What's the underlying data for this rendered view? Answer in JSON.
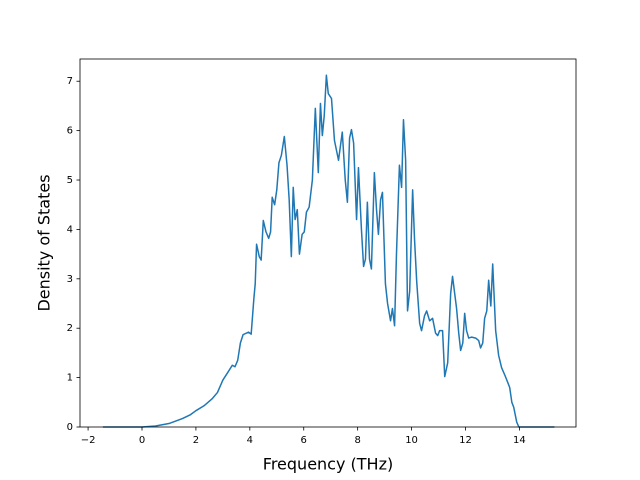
{
  "chart_data": {
    "type": "line",
    "x_label": "Frequency (THz)",
    "y_label": "Density of States",
    "xlim": [
      -2.3,
      16.1
    ],
    "ylim": [
      0,
      7.45
    ],
    "xticks": [
      {
        "value": -2,
        "label": "−2"
      },
      0,
      2,
      4,
      6,
      8,
      10,
      12,
      14
    ],
    "yticks": [
      0,
      1,
      2,
      3,
      4,
      5,
      6,
      7
    ],
    "grid": false,
    "series": [
      {
        "color": "#1f77b4",
        "x": [
          -1.45,
          0,
          0.5,
          1.0,
          1.5,
          1.8,
          2.0,
          2.3,
          2.6,
          2.8,
          3.0,
          3.2,
          3.35,
          3.45,
          3.55,
          3.65,
          3.75,
          3.95,
          4.05,
          4.15,
          4.2,
          4.25,
          4.35,
          4.42,
          4.5,
          4.6,
          4.7,
          4.77,
          4.83,
          4.92,
          5.0,
          5.08,
          5.17,
          5.28,
          5.38,
          5.46,
          5.54,
          5.61,
          5.68,
          5.76,
          5.84,
          5.94,
          6.02,
          6.1,
          6.2,
          6.32,
          6.43,
          6.54,
          6.62,
          6.69,
          6.76,
          6.84,
          6.91,
          7.03,
          7.14,
          7.29,
          7.43,
          7.54,
          7.62,
          7.7,
          7.77,
          7.85,
          7.96,
          8.03,
          8.14,
          8.22,
          8.29,
          8.36,
          8.44,
          8.51,
          8.62,
          8.7,
          8.77,
          8.85,
          8.92,
          9.03,
          9.11,
          9.22,
          9.29,
          9.37,
          9.44,
          9.55,
          9.63,
          9.7,
          9.78,
          9.85,
          9.93,
          10.04,
          10.11,
          10.19,
          10.3,
          10.37,
          10.48,
          10.56,
          10.67,
          10.78,
          10.89,
          10.97,
          11.04,
          11.15,
          11.23,
          11.34,
          11.45,
          11.52,
          11.6,
          11.67,
          11.75,
          11.82,
          11.9,
          11.97,
          12.04,
          12.12,
          12.23,
          12.38,
          12.49,
          12.56,
          12.64,
          12.71,
          12.79,
          12.86,
          12.94,
          13.01,
          13.12,
          13.23,
          13.34,
          13.46,
          13.57,
          13.64,
          13.72,
          13.79,
          13.9,
          13.98,
          15.3
        ],
        "values": [
          0,
          0,
          0.02,
          0.07,
          0.17,
          0.25,
          0.33,
          0.43,
          0.57,
          0.7,
          0.95,
          1.12,
          1.25,
          1.22,
          1.35,
          1.7,
          1.87,
          1.92,
          1.88,
          2.6,
          2.9,
          3.7,
          3.45,
          3.38,
          4.18,
          3.95,
          3.82,
          3.95,
          4.65,
          4.5,
          4.8,
          5.35,
          5.5,
          5.88,
          5.3,
          4.6,
          3.45,
          4.85,
          4.2,
          4.4,
          3.5,
          3.9,
          3.95,
          4.35,
          4.45,
          5.0,
          6.45,
          5.15,
          6.55,
          5.9,
          6.3,
          7.12,
          6.75,
          6.65,
          5.8,
          5.4,
          5.97,
          5.0,
          4.55,
          5.85,
          6.02,
          5.75,
          4.2,
          5.25,
          4.0,
          3.25,
          3.4,
          4.55,
          3.4,
          3.2,
          5.15,
          4.4,
          3.9,
          4.6,
          4.75,
          2.9,
          2.5,
          2.15,
          2.4,
          2.05,
          3.5,
          5.3,
          4.85,
          6.22,
          5.4,
          2.35,
          2.75,
          4.8,
          3.8,
          2.95,
          2.1,
          1.95,
          2.25,
          2.35,
          2.15,
          2.2,
          1.9,
          1.85,
          1.95,
          1.95,
          1.02,
          1.3,
          2.7,
          3.05,
          2.7,
          2.4,
          1.9,
          1.55,
          1.7,
          2.3,
          1.95,
          1.8,
          1.82,
          1.8,
          1.75,
          1.6,
          1.7,
          2.2,
          2.35,
          2.97,
          2.45,
          3.3,
          1.95,
          1.45,
          1.2,
          1.05,
          0.9,
          0.8,
          0.5,
          0.4,
          0.1,
          0,
          0
        ]
      }
    ]
  }
}
